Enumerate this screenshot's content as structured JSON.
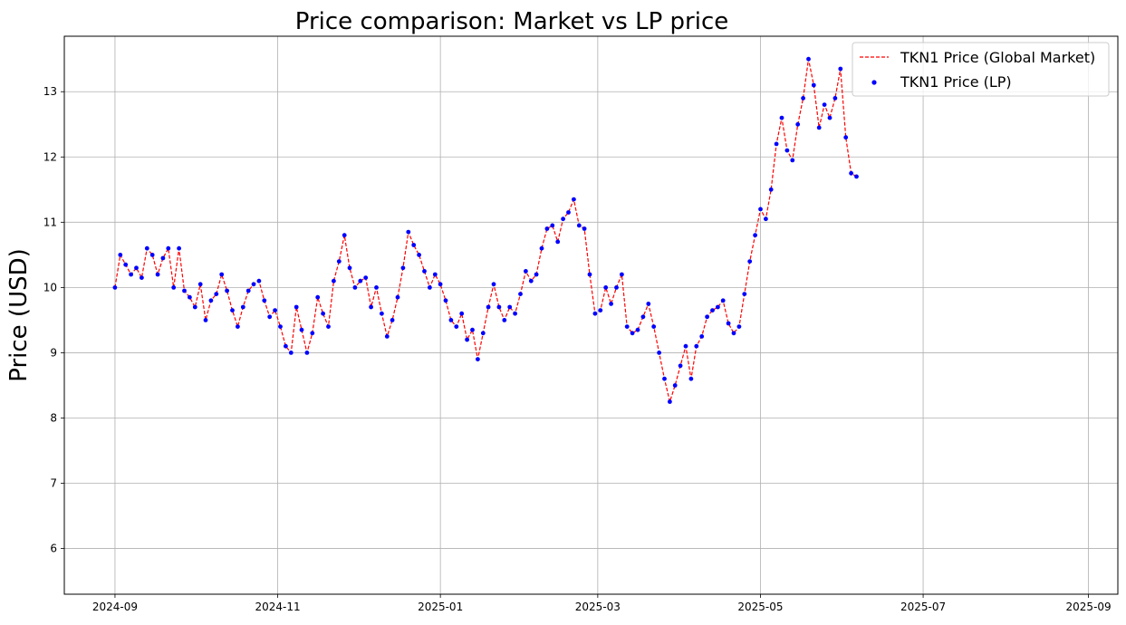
{
  "chart_data": {
    "type": "line",
    "title": "Price comparison: Market vs LP price",
    "xlabel": "",
    "ylabel": "Price (USD)",
    "grid": true,
    "legend_position": "top-right",
    "x_ticks": [
      "2024-09",
      "2024-11",
      "2025-01",
      "2025-03",
      "2025-05",
      "2025-07",
      "2025-09"
    ],
    "y_ticks": [
      "6",
      "7",
      "8",
      "9",
      "10",
      "11",
      "12",
      "13"
    ],
    "xlim": [
      "2024-08-13",
      "2025-09-12"
    ],
    "ylim": [
      5.3,
      13.85
    ],
    "series": [
      {
        "name": "TKN1 Price (Global Market)",
        "style": "dashed-line",
        "color": "#ff0000",
        "points": [
          [
            "2024-09-01",
            10.0
          ],
          [
            "2024-09-03",
            10.5
          ],
          [
            "2024-09-05",
            10.35
          ],
          [
            "2024-09-07",
            10.2
          ],
          [
            "2024-09-09",
            10.3
          ],
          [
            "2024-09-11",
            10.15
          ],
          [
            "2024-09-13",
            10.6
          ],
          [
            "2024-09-15",
            10.5
          ],
          [
            "2024-09-17",
            10.2
          ],
          [
            "2024-09-19",
            10.45
          ],
          [
            "2024-09-21",
            10.6
          ],
          [
            "2024-09-23",
            10.0
          ],
          [
            "2024-09-25",
            10.6
          ],
          [
            "2024-09-27",
            9.95
          ],
          [
            "2024-09-29",
            9.85
          ],
          [
            "2024-10-01",
            9.7
          ],
          [
            "2024-10-03",
            10.05
          ],
          [
            "2024-10-05",
            9.5
          ],
          [
            "2024-10-07",
            9.8
          ],
          [
            "2024-10-09",
            9.9
          ],
          [
            "2024-10-11",
            10.2
          ],
          [
            "2024-10-13",
            9.95
          ],
          [
            "2024-10-15",
            9.65
          ],
          [
            "2024-10-17",
            9.4
          ],
          [
            "2024-10-19",
            9.7
          ],
          [
            "2024-10-21",
            9.95
          ],
          [
            "2024-10-23",
            10.05
          ],
          [
            "2024-10-25",
            10.1
          ],
          [
            "2024-10-27",
            9.8
          ],
          [
            "2024-10-29",
            9.55
          ],
          [
            "2024-10-31",
            9.65
          ],
          [
            "2024-11-02",
            9.4
          ],
          [
            "2024-11-04",
            9.1
          ],
          [
            "2024-11-06",
            9.0
          ],
          [
            "2024-11-08",
            9.7
          ],
          [
            "2024-11-10",
            9.35
          ],
          [
            "2024-11-12",
            9.0
          ],
          [
            "2024-11-14",
            9.3
          ],
          [
            "2024-11-16",
            9.85
          ],
          [
            "2024-11-18",
            9.6
          ],
          [
            "2024-11-20",
            9.4
          ],
          [
            "2024-11-22",
            10.1
          ],
          [
            "2024-11-24",
            10.4
          ],
          [
            "2024-11-26",
            10.8
          ],
          [
            "2024-11-28",
            10.3
          ],
          [
            "2024-11-30",
            10.0
          ],
          [
            "2024-12-02",
            10.1
          ],
          [
            "2024-12-04",
            10.15
          ],
          [
            "2024-12-06",
            9.7
          ],
          [
            "2024-12-08",
            10.0
          ],
          [
            "2024-12-10",
            9.6
          ],
          [
            "2024-12-12",
            9.25
          ],
          [
            "2024-12-14",
            9.5
          ],
          [
            "2024-12-16",
            9.85
          ],
          [
            "2024-12-18",
            10.3
          ],
          [
            "2024-12-20",
            10.85
          ],
          [
            "2024-12-22",
            10.65
          ],
          [
            "2024-12-24",
            10.5
          ],
          [
            "2024-12-26",
            10.25
          ],
          [
            "2024-12-28",
            10.0
          ],
          [
            "2024-12-30",
            10.2
          ],
          [
            "2025-01-01",
            10.05
          ],
          [
            "2025-01-03",
            9.8
          ],
          [
            "2025-01-05",
            9.5
          ],
          [
            "2025-01-07",
            9.4
          ],
          [
            "2025-01-09",
            9.6
          ],
          [
            "2025-01-11",
            9.2
          ],
          [
            "2025-01-13",
            9.35
          ],
          [
            "2025-01-15",
            8.9
          ],
          [
            "2025-01-17",
            9.3
          ],
          [
            "2025-01-19",
            9.7
          ],
          [
            "2025-01-21",
            10.05
          ],
          [
            "2025-01-23",
            9.7
          ],
          [
            "2025-01-25",
            9.5
          ],
          [
            "2025-01-27",
            9.7
          ],
          [
            "2025-01-29",
            9.6
          ],
          [
            "2025-01-31",
            9.9
          ],
          [
            "2025-02-02",
            10.25
          ],
          [
            "2025-02-04",
            10.1
          ],
          [
            "2025-02-06",
            10.2
          ],
          [
            "2025-02-08",
            10.6
          ],
          [
            "2025-02-10",
            10.9
          ],
          [
            "2025-02-12",
            10.95
          ],
          [
            "2025-02-14",
            10.7
          ],
          [
            "2025-02-16",
            11.05
          ],
          [
            "2025-02-18",
            11.15
          ],
          [
            "2025-02-20",
            11.35
          ],
          [
            "2025-02-22",
            10.95
          ],
          [
            "2025-02-24",
            10.9
          ],
          [
            "2025-02-26",
            10.2
          ],
          [
            "2025-02-28",
            9.6
          ],
          [
            "2025-03-02",
            9.65
          ],
          [
            "2025-03-04",
            10.0
          ],
          [
            "2025-03-06",
            9.75
          ],
          [
            "2025-03-08",
            10.0
          ],
          [
            "2025-03-10",
            10.2
          ],
          [
            "2025-03-12",
            9.4
          ],
          [
            "2025-03-14",
            9.3
          ],
          [
            "2025-03-16",
            9.35
          ],
          [
            "2025-03-18",
            9.55
          ],
          [
            "2025-03-20",
            9.75
          ],
          [
            "2025-03-22",
            9.4
          ],
          [
            "2025-03-24",
            9.0
          ],
          [
            "2025-03-26",
            8.6
          ],
          [
            "2025-03-28",
            8.25
          ],
          [
            "2025-03-30",
            8.5
          ],
          [
            "2025-04-01",
            8.8
          ],
          [
            "2025-04-03",
            9.1
          ],
          [
            "2025-04-05",
            8.6
          ],
          [
            "2025-04-07",
            9.1
          ],
          [
            "2025-04-09",
            9.25
          ],
          [
            "2025-04-11",
            9.55
          ],
          [
            "2025-04-13",
            9.65
          ],
          [
            "2025-04-15",
            9.7
          ],
          [
            "2025-04-17",
            9.8
          ],
          [
            "2025-04-19",
            9.45
          ],
          [
            "2025-04-21",
            9.3
          ],
          [
            "2025-04-23",
            9.4
          ],
          [
            "2025-04-25",
            9.9
          ],
          [
            "2025-04-27",
            10.4
          ],
          [
            "2025-04-29",
            10.8
          ],
          [
            "2025-05-01",
            11.2
          ],
          [
            "2025-05-03",
            11.05
          ],
          [
            "2025-05-05",
            11.5
          ],
          [
            "2025-05-07",
            12.2
          ],
          [
            "2025-05-09",
            12.6
          ],
          [
            "2025-05-11",
            12.1
          ],
          [
            "2025-05-13",
            11.95
          ],
          [
            "2025-05-15",
            12.5
          ],
          [
            "2025-05-17",
            12.9
          ],
          [
            "2025-05-19",
            13.5
          ],
          [
            "2025-05-21",
            13.1
          ],
          [
            "2025-05-23",
            12.45
          ],
          [
            "2025-05-25",
            12.8
          ],
          [
            "2025-05-27",
            12.6
          ],
          [
            "2025-05-29",
            12.9
          ],
          [
            "2025-05-31",
            13.35
          ],
          [
            "2025-06-02",
            12.3
          ],
          [
            "2025-06-04",
            11.75
          ],
          [
            "2025-06-06",
            11.7
          ]
        ]
      },
      {
        "name": "TKN1 Price (LP)",
        "style": "scatter",
        "color": "#0000ff",
        "points": []
      }
    ]
  }
}
